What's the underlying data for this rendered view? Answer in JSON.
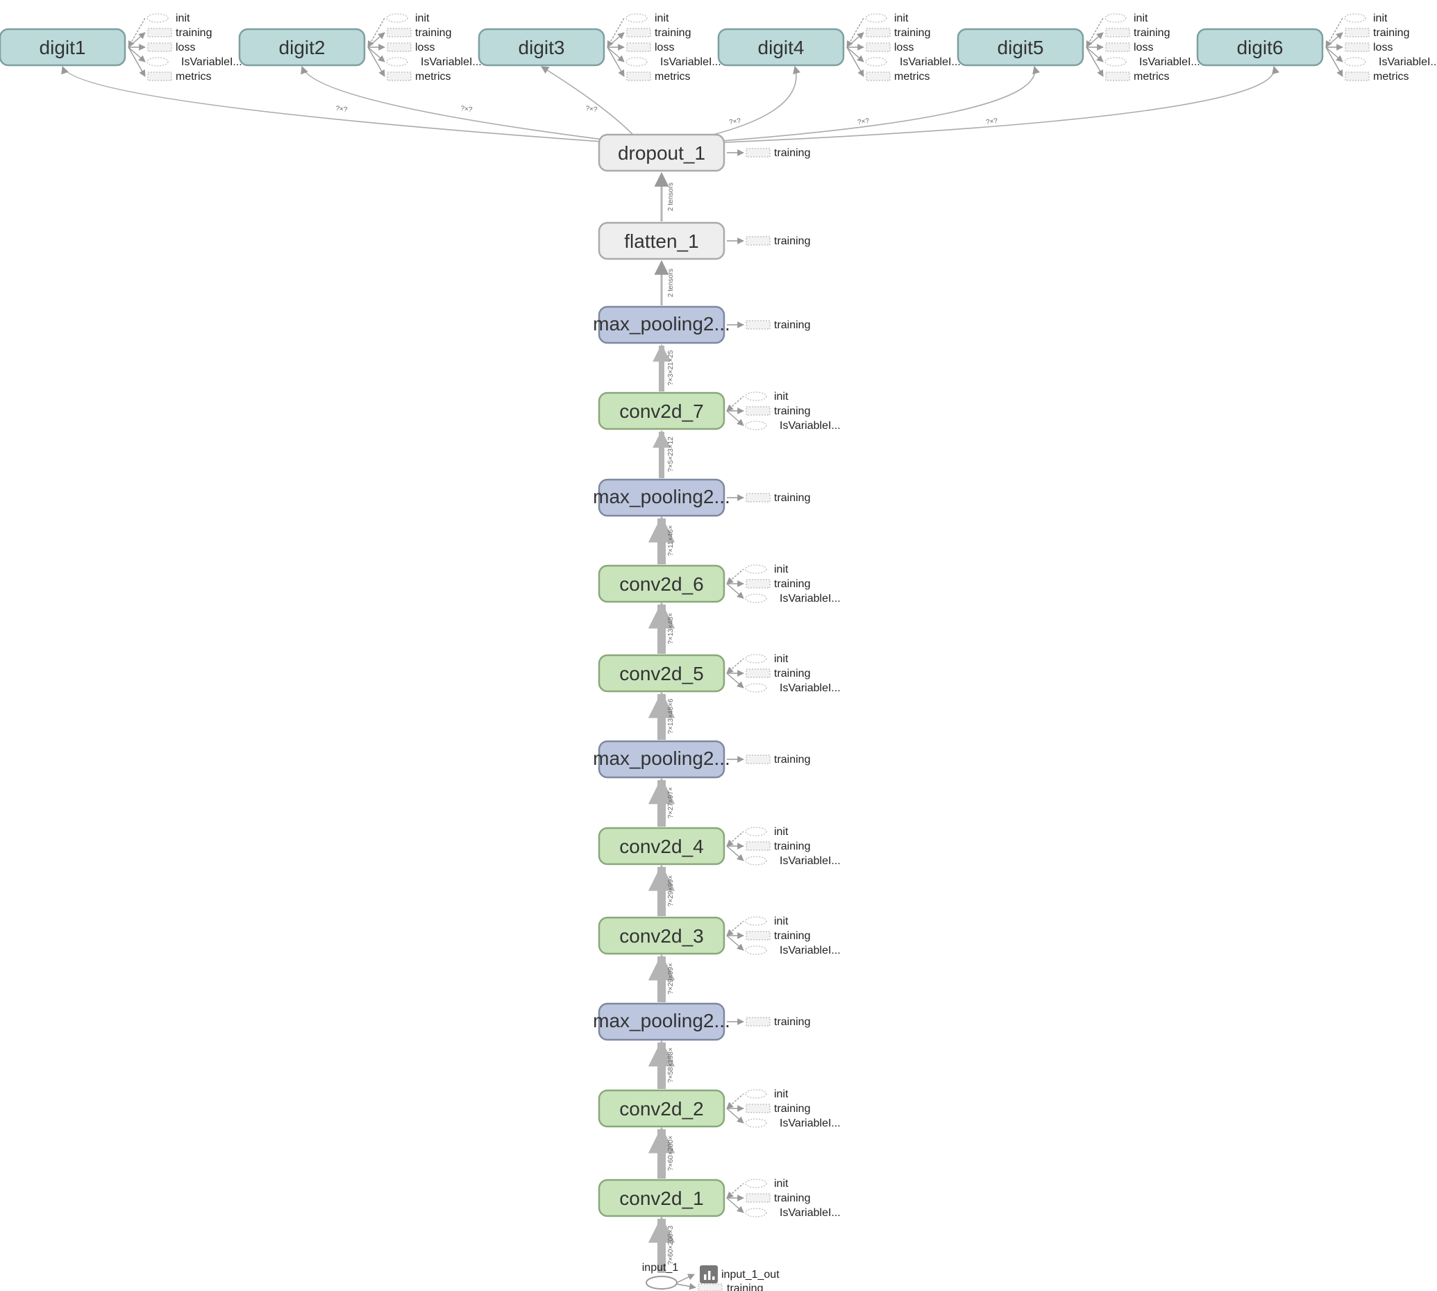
{
  "graph": {
    "colors": {
      "output_fill": "#bcdada",
      "output_stroke": "#7f9f9f",
      "conv_fill": "#c9e4bb",
      "conv_stroke": "#8aa87a",
      "pool_fill": "#bcc6de",
      "pool_stroke": "#7f88a0",
      "misc_fill": "#eeeeee",
      "misc_stroke": "#aaaaaa",
      "edge": "#b4b4b4",
      "aux_edge": "#999999"
    },
    "outputs": [
      {
        "label": "digit1",
        "aux": [
          "init",
          "training",
          "loss",
          "IsVariableI...",
          "metrics"
        ],
        "edge_label": "?×?"
      },
      {
        "label": "digit2",
        "aux": [
          "init",
          "training",
          "loss",
          "IsVariableI...",
          "metrics"
        ],
        "edge_label": "?×?"
      },
      {
        "label": "digit3",
        "aux": [
          "init",
          "training",
          "loss",
          "IsVariableI...",
          "metrics"
        ],
        "edge_label": "?×?"
      },
      {
        "label": "digit4",
        "aux": [
          "init",
          "training",
          "loss",
          "IsVariableI...",
          "metrics"
        ],
        "edge_label": "?×?"
      },
      {
        "label": "digit5",
        "aux": [
          "init",
          "training",
          "loss",
          "IsVariableI...",
          "metrics"
        ],
        "edge_label": "?×?"
      },
      {
        "label": "digit6",
        "aux": [
          "init",
          "training",
          "loss",
          "IsVariableI...",
          "metrics"
        ],
        "edge_label": "?×?"
      }
    ],
    "layers": [
      {
        "label": "dropout_1",
        "kind": "misc",
        "aux": [
          "training"
        ],
        "edge_label": "2 tensors"
      },
      {
        "label": "flatten_1",
        "kind": "misc",
        "aux": [
          "training"
        ],
        "edge_label": "2 tensors"
      },
      {
        "label": "max_pooling2...",
        "kind": "pool",
        "aux": [
          "training"
        ],
        "edge_label": "?×3×21×25"
      },
      {
        "label": "conv2d_7",
        "kind": "conv",
        "aux": [
          "init",
          "training",
          "IsVariableI..."
        ],
        "edge_label": "?×5×23×12"
      },
      {
        "label": "max_pooling2...",
        "kind": "pool",
        "aux": [
          "training"
        ],
        "edge_label": "?×11×46×"
      },
      {
        "label": "conv2d_6",
        "kind": "conv",
        "aux": [
          "init",
          "training",
          "IsVariableI..."
        ],
        "edge_label": "?×13×48×"
      },
      {
        "label": "conv2d_5",
        "kind": "conv",
        "aux": [
          "init",
          "training",
          "IsVariableI..."
        ],
        "edge_label": "?×13×48×6"
      },
      {
        "label": "max_pooling2...",
        "kind": "pool",
        "aux": [
          "training"
        ],
        "edge_label": "?×27×97×"
      },
      {
        "label": "conv2d_4",
        "kind": "conv",
        "aux": [
          "init",
          "training",
          "IsVariableI..."
        ],
        "edge_label": "?×29×99×"
      },
      {
        "label": "conv2d_3",
        "kind": "conv",
        "aux": [
          "init",
          "training",
          "IsVariableI..."
        ],
        "edge_label": "?×29×99×"
      },
      {
        "label": "max_pooling2...",
        "kind": "pool",
        "aux": [
          "training"
        ],
        "edge_label": "?×58×198×"
      },
      {
        "label": "conv2d_2",
        "kind": "conv",
        "aux": [
          "init",
          "training",
          "IsVariableI..."
        ],
        "edge_label": "?×60×200×"
      },
      {
        "label": "conv2d_1",
        "kind": "conv",
        "aux": [
          "init",
          "training",
          "IsVariableI..."
        ],
        "edge_label": "?×60×200×3"
      }
    ],
    "input": {
      "label": "input_1",
      "aux": [
        "input_1_out",
        "training"
      ]
    }
  }
}
